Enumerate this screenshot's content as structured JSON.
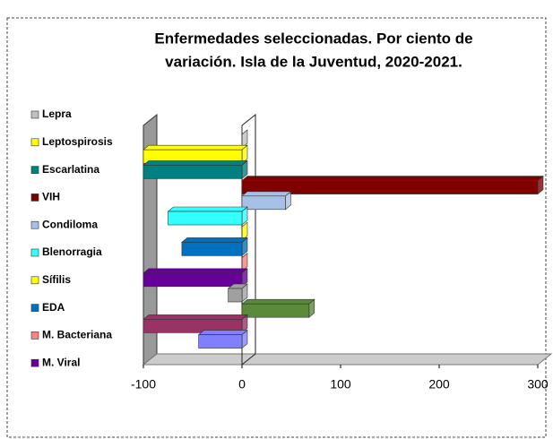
{
  "chart_data": {
    "type": "bar3d",
    "title": [
      "Enfermedades seleccionadas. Por ciento de",
      "variación.  Isla de la Juventud, 2020-2021."
    ],
    "series": [
      {
        "name": "Lepra",
        "color": "#c0c0c0",
        "values": [
          0
        ]
      },
      {
        "name": "Leptospirosis",
        "color": "#ffff00",
        "values": [
          -100
        ]
      },
      {
        "name": "Escarlatina",
        "color": "#008080",
        "values": [
          -100
        ]
      },
      {
        "name": "VIH",
        "color": "#800000",
        "values": [
          300
        ]
      },
      {
        "name": "Condiloma",
        "color": "#a6c0e8",
        "values": [
          44
        ]
      },
      {
        "name": "Blenorragia",
        "color": "#33ffff",
        "values": [
          -75
        ]
      },
      {
        "name": "Sífilis",
        "color": "#ffff00",
        "values": [
          0
        ]
      },
      {
        "name": "EDA",
        "color": "#0070c0",
        "values": [
          -61
        ]
      },
      {
        "name": "M. Bacteriana",
        "color": "#ff8080",
        "values": [
          0
        ]
      },
      {
        "name": "M. Viral",
        "color": "#660099",
        "values": [
          -100
        ]
      }
    ],
    "extra_bars": {
      "colors": [
        "#a0a0a0",
        "#5a8a3a",
        "#993366",
        "#8080ff"
      ],
      "values": [
        -14,
        68,
        -100,
        -44
      ]
    },
    "xlim": [
      -100,
      300
    ],
    "xticks": [
      -100,
      0,
      100,
      200,
      300
    ]
  }
}
